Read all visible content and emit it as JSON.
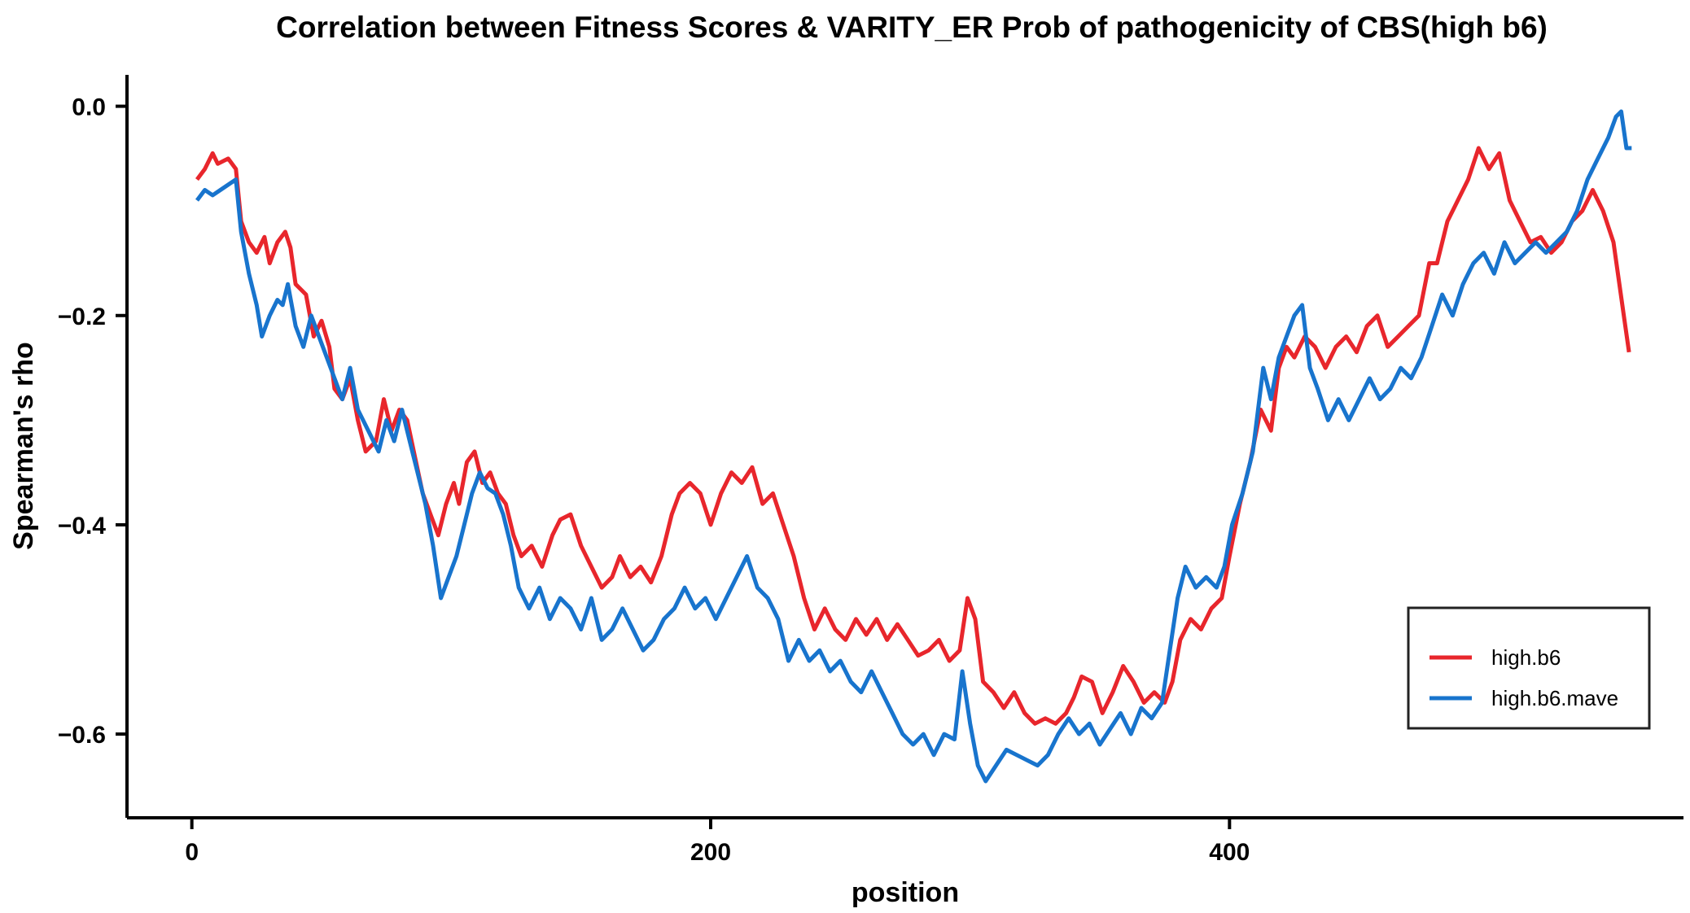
{
  "chart_data": {
    "type": "line",
    "title": "Correlation between Fitness Scores & VARITY_ER Prob of pathogenicity of CBS(high b6)",
    "xlabel": "position",
    "ylabel": "Spearman's rho",
    "xlim": [
      -25,
      575
    ],
    "ylim": [
      -0.68,
      0.03
    ],
    "xticks": [
      0,
      200,
      400
    ],
    "yticks": [
      0.0,
      -0.2,
      -0.4,
      -0.6
    ],
    "xtick_labels": [
      "0",
      "200",
      "400"
    ],
    "ytick_labels": [
      "0.0",
      "−0.2",
      "−0.4",
      "−0.6"
    ],
    "grid": false,
    "legend": {
      "placement": "lower-right"
    },
    "series": [
      {
        "name": "high.b6",
        "color": "#e8262c",
        "points": [
          [
            2,
            -0.07
          ],
          [
            5,
            -0.06
          ],
          [
            8,
            -0.045
          ],
          [
            10,
            -0.055
          ],
          [
            14,
            -0.05
          ],
          [
            17,
            -0.06
          ],
          [
            19,
            -0.11
          ],
          [
            22,
            -0.13
          ],
          [
            25,
            -0.14
          ],
          [
            28,
            -0.125
          ],
          [
            30,
            -0.15
          ],
          [
            33,
            -0.13
          ],
          [
            36,
            -0.12
          ],
          [
            38,
            -0.135
          ],
          [
            40,
            -0.17
          ],
          [
            44,
            -0.18
          ],
          [
            47,
            -0.22
          ],
          [
            50,
            -0.205
          ],
          [
            53,
            -0.23
          ],
          [
            55,
            -0.27
          ],
          [
            58,
            -0.28
          ],
          [
            61,
            -0.26
          ],
          [
            64,
            -0.3
          ],
          [
            67,
            -0.33
          ],
          [
            71,
            -0.32
          ],
          [
            74,
            -0.28
          ],
          [
            77,
            -0.31
          ],
          [
            80,
            -0.29
          ],
          [
            83,
            -0.3
          ],
          [
            86,
            -0.335
          ],
          [
            89,
            -0.37
          ],
          [
            92,
            -0.39
          ],
          [
            95,
            -0.41
          ],
          [
            98,
            -0.38
          ],
          [
            101,
            -0.36
          ],
          [
            103,
            -0.38
          ],
          [
            106,
            -0.34
          ],
          [
            109,
            -0.33
          ],
          [
            112,
            -0.36
          ],
          [
            115,
            -0.35
          ],
          [
            118,
            -0.37
          ],
          [
            121,
            -0.38
          ],
          [
            124,
            -0.41
          ],
          [
            127,
            -0.43
          ],
          [
            131,
            -0.42
          ],
          [
            135,
            -0.44
          ],
          [
            139,
            -0.41
          ],
          [
            142,
            -0.395
          ],
          [
            146,
            -0.39
          ],
          [
            150,
            -0.42
          ],
          [
            154,
            -0.44
          ],
          [
            158,
            -0.46
          ],
          [
            162,
            -0.45
          ],
          [
            165,
            -0.43
          ],
          [
            169,
            -0.45
          ],
          [
            173,
            -0.44
          ],
          [
            177,
            -0.455
          ],
          [
            181,
            -0.43
          ],
          [
            185,
            -0.39
          ],
          [
            188,
            -0.37
          ],
          [
            192,
            -0.36
          ],
          [
            196,
            -0.37
          ],
          [
            200,
            -0.4
          ],
          [
            204,
            -0.37
          ],
          [
            208,
            -0.35
          ],
          [
            212,
            -0.36
          ],
          [
            216,
            -0.345
          ],
          [
            220,
            -0.38
          ],
          [
            224,
            -0.37
          ],
          [
            228,
            -0.4
          ],
          [
            232,
            -0.43
          ],
          [
            236,
            -0.47
          ],
          [
            240,
            -0.5
          ],
          [
            244,
            -0.48
          ],
          [
            248,
            -0.5
          ],
          [
            252,
            -0.51
          ],
          [
            256,
            -0.49
          ],
          [
            260,
            -0.505
          ],
          [
            264,
            -0.49
          ],
          [
            268,
            -0.51
          ],
          [
            272,
            -0.495
          ],
          [
            276,
            -0.51
          ],
          [
            280,
            -0.525
          ],
          [
            284,
            -0.52
          ],
          [
            288,
            -0.51
          ],
          [
            292,
            -0.53
          ],
          [
            296,
            -0.52
          ],
          [
            299,
            -0.47
          ],
          [
            302,
            -0.49
          ],
          [
            305,
            -0.55
          ],
          [
            309,
            -0.56
          ],
          [
            313,
            -0.575
          ],
          [
            317,
            -0.56
          ],
          [
            321,
            -0.58
          ],
          [
            325,
            -0.59
          ],
          [
            329,
            -0.585
          ],
          [
            333,
            -0.59
          ],
          [
            337,
            -0.58
          ],
          [
            340,
            -0.565
          ],
          [
            343,
            -0.545
          ],
          [
            347,
            -0.55
          ],
          [
            351,
            -0.58
          ],
          [
            355,
            -0.56
          ],
          [
            359,
            -0.535
          ],
          [
            363,
            -0.55
          ],
          [
            367,
            -0.57
          ],
          [
            371,
            -0.56
          ],
          [
            375,
            -0.57
          ],
          [
            378,
            -0.55
          ],
          [
            381,
            -0.51
          ],
          [
            385,
            -0.49
          ],
          [
            389,
            -0.5
          ],
          [
            393,
            -0.48
          ],
          [
            397,
            -0.47
          ],
          [
            400,
            -0.43
          ],
          [
            404,
            -0.38
          ],
          [
            408,
            -0.34
          ],
          [
            412,
            -0.29
          ],
          [
            416,
            -0.31
          ],
          [
            419,
            -0.25
          ],
          [
            422,
            -0.23
          ],
          [
            425,
            -0.24
          ],
          [
            429,
            -0.22
          ],
          [
            433,
            -0.23
          ],
          [
            437,
            -0.25
          ],
          [
            441,
            -0.23
          ],
          [
            445,
            -0.22
          ],
          [
            449,
            -0.235
          ],
          [
            453,
            -0.21
          ],
          [
            457,
            -0.2
          ],
          [
            461,
            -0.23
          ],
          [
            465,
            -0.22
          ],
          [
            469,
            -0.21
          ],
          [
            473,
            -0.2
          ],
          [
            477,
            -0.15
          ],
          [
            480,
            -0.15
          ],
          [
            484,
            -0.11
          ],
          [
            488,
            -0.09
          ],
          [
            492,
            -0.07
          ],
          [
            496,
            -0.04
          ],
          [
            500,
            -0.06
          ],
          [
            504,
            -0.045
          ],
          [
            508,
            -0.09
          ],
          [
            512,
            -0.11
          ],
          [
            516,
            -0.13
          ],
          [
            520,
            -0.125
          ],
          [
            524,
            -0.14
          ],
          [
            528,
            -0.13
          ],
          [
            532,
            -0.11
          ],
          [
            536,
            -0.1
          ],
          [
            540,
            -0.08
          ],
          [
            544,
            -0.1
          ],
          [
            548,
            -0.13
          ],
          [
            552,
            -0.2
          ],
          [
            554,
            -0.235
          ]
        ]
      },
      {
        "name": "high.b6.mave",
        "color": "#1874cd",
        "points": [
          [
            2,
            -0.09
          ],
          [
            5,
            -0.08
          ],
          [
            8,
            -0.085
          ],
          [
            11,
            -0.08
          ],
          [
            14,
            -0.075
          ],
          [
            17,
            -0.07
          ],
          [
            19,
            -0.12
          ],
          [
            22,
            -0.16
          ],
          [
            25,
            -0.19
          ],
          [
            27,
            -0.22
          ],
          [
            30,
            -0.2
          ],
          [
            33,
            -0.185
          ],
          [
            35,
            -0.19
          ],
          [
            37,
            -0.17
          ],
          [
            40,
            -0.21
          ],
          [
            43,
            -0.23
          ],
          [
            46,
            -0.2
          ],
          [
            49,
            -0.22
          ],
          [
            52,
            -0.24
          ],
          [
            55,
            -0.26
          ],
          [
            58,
            -0.28
          ],
          [
            61,
            -0.25
          ],
          [
            64,
            -0.29
          ],
          [
            68,
            -0.31
          ],
          [
            72,
            -0.33
          ],
          [
            75,
            -0.3
          ],
          [
            78,
            -0.32
          ],
          [
            81,
            -0.29
          ],
          [
            84,
            -0.32
          ],
          [
            87,
            -0.35
          ],
          [
            90,
            -0.38
          ],
          [
            93,
            -0.42
          ],
          [
            96,
            -0.47
          ],
          [
            99,
            -0.45
          ],
          [
            102,
            -0.43
          ],
          [
            105,
            -0.4
          ],
          [
            108,
            -0.37
          ],
          [
            111,
            -0.35
          ],
          [
            114,
            -0.365
          ],
          [
            117,
            -0.37
          ],
          [
            120,
            -0.39
          ],
          [
            123,
            -0.42
          ],
          [
            126,
            -0.46
          ],
          [
            130,
            -0.48
          ],
          [
            134,
            -0.46
          ],
          [
            138,
            -0.49
          ],
          [
            142,
            -0.47
          ],
          [
            146,
            -0.48
          ],
          [
            150,
            -0.5
          ],
          [
            154,
            -0.47
          ],
          [
            158,
            -0.51
          ],
          [
            162,
            -0.5
          ],
          [
            166,
            -0.48
          ],
          [
            170,
            -0.5
          ],
          [
            174,
            -0.52
          ],
          [
            178,
            -0.51
          ],
          [
            182,
            -0.49
          ],
          [
            186,
            -0.48
          ],
          [
            190,
            -0.46
          ],
          [
            194,
            -0.48
          ],
          [
            198,
            -0.47
          ],
          [
            202,
            -0.49
          ],
          [
            206,
            -0.47
          ],
          [
            210,
            -0.45
          ],
          [
            214,
            -0.43
          ],
          [
            218,
            -0.46
          ],
          [
            222,
            -0.47
          ],
          [
            226,
            -0.49
          ],
          [
            230,
            -0.53
          ],
          [
            234,
            -0.51
          ],
          [
            238,
            -0.53
          ],
          [
            242,
            -0.52
          ],
          [
            246,
            -0.54
          ],
          [
            250,
            -0.53
          ],
          [
            254,
            -0.55
          ],
          [
            258,
            -0.56
          ],
          [
            262,
            -0.54
          ],
          [
            266,
            -0.56
          ],
          [
            270,
            -0.58
          ],
          [
            274,
            -0.6
          ],
          [
            278,
            -0.61
          ],
          [
            282,
            -0.6
          ],
          [
            286,
            -0.62
          ],
          [
            290,
            -0.6
          ],
          [
            294,
            -0.605
          ],
          [
            297,
            -0.54
          ],
          [
            300,
            -0.59
          ],
          [
            303,
            -0.63
          ],
          [
            306,
            -0.645
          ],
          [
            310,
            -0.63
          ],
          [
            314,
            -0.615
          ],
          [
            318,
            -0.62
          ],
          [
            322,
            -0.625
          ],
          [
            326,
            -0.63
          ],
          [
            330,
            -0.62
          ],
          [
            334,
            -0.6
          ],
          [
            338,
            -0.585
          ],
          [
            342,
            -0.6
          ],
          [
            346,
            -0.59
          ],
          [
            350,
            -0.61
          ],
          [
            354,
            -0.595
          ],
          [
            358,
            -0.58
          ],
          [
            362,
            -0.6
          ],
          [
            366,
            -0.575
          ],
          [
            370,
            -0.585
          ],
          [
            374,
            -0.57
          ],
          [
            377,
            -0.52
          ],
          [
            380,
            -0.47
          ],
          [
            383,
            -0.44
          ],
          [
            387,
            -0.46
          ],
          [
            391,
            -0.45
          ],
          [
            395,
            -0.46
          ],
          [
            398,
            -0.44
          ],
          [
            401,
            -0.4
          ],
          [
            405,
            -0.37
          ],
          [
            409,
            -0.33
          ],
          [
            413,
            -0.25
          ],
          [
            416,
            -0.28
          ],
          [
            419,
            -0.24
          ],
          [
            422,
            -0.22
          ],
          [
            425,
            -0.2
          ],
          [
            428,
            -0.19
          ],
          [
            431,
            -0.25
          ],
          [
            434,
            -0.27
          ],
          [
            438,
            -0.3
          ],
          [
            442,
            -0.28
          ],
          [
            446,
            -0.3
          ],
          [
            450,
            -0.28
          ],
          [
            454,
            -0.26
          ],
          [
            458,
            -0.28
          ],
          [
            462,
            -0.27
          ],
          [
            466,
            -0.25
          ],
          [
            470,
            -0.26
          ],
          [
            474,
            -0.24
          ],
          [
            478,
            -0.21
          ],
          [
            482,
            -0.18
          ],
          [
            486,
            -0.2
          ],
          [
            490,
            -0.17
          ],
          [
            494,
            -0.15
          ],
          [
            498,
            -0.14
          ],
          [
            502,
            -0.16
          ],
          [
            506,
            -0.13
          ],
          [
            510,
            -0.15
          ],
          [
            514,
            -0.14
          ],
          [
            518,
            -0.13
          ],
          [
            522,
            -0.14
          ],
          [
            526,
            -0.13
          ],
          [
            530,
            -0.12
          ],
          [
            534,
            -0.1
          ],
          [
            538,
            -0.07
          ],
          [
            542,
            -0.05
          ],
          [
            546,
            -0.03
          ],
          [
            549,
            -0.01
          ],
          [
            551,
            -0.005
          ],
          [
            553,
            -0.04
          ],
          [
            555,
            -0.04
          ]
        ]
      }
    ]
  }
}
